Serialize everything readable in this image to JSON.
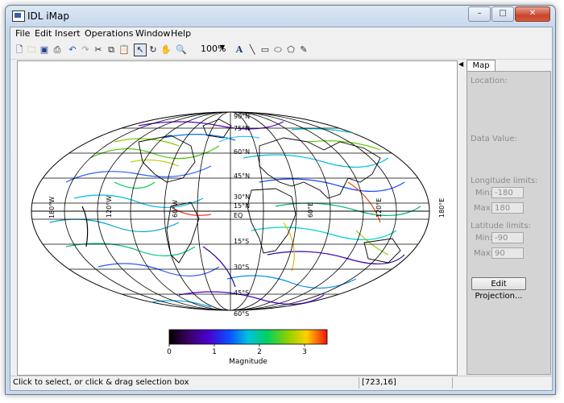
{
  "window": {
    "title": "IDL iMap",
    "minimize": "–",
    "maximize": "□",
    "close": "✕"
  },
  "menu": [
    "File",
    "Edit",
    "Insert",
    "Operations",
    "Window",
    "Help"
  ],
  "toolbar": {
    "icons": [
      "new-file-icon",
      "open-folder-icon",
      "save-icon",
      "print-icon",
      "undo-icon",
      "redo-icon",
      "cut-icon",
      "copy-icon",
      "paste-icon",
      "select-arrow-icon",
      "rotate-icon",
      "pan-hand-icon",
      "zoom-icon"
    ],
    "zoom_value": "100%",
    "draw_icons": [
      "text-icon",
      "line-icon",
      "rectangle-icon",
      "ellipse-icon",
      "polygon-icon",
      "freehand-icon"
    ]
  },
  "map": {
    "labels": {
      "lat_90n": "90°N",
      "lat_75n": "75°N",
      "lat_60n": "60°N",
      "lat_45n": "45°N",
      "lat_30n": "30°N",
      "lat_15n": "15°N",
      "lat_eq": "EQ",
      "lat_15s": "15°S",
      "lat_30s": "30°S",
      "lat_45s": "45°S",
      "lat_60s": "60°S",
      "lon_180w": "180°W",
      "lon_120w": "120°W",
      "lon_60w": "60°W",
      "lon_60e": "60°E",
      "lon_120e": "120°E",
      "lon_180e": "180°E"
    },
    "colorbar": {
      "ticks": [
        "0",
        "1",
        "2",
        "3"
      ],
      "title": "Magnitude",
      "min": 0,
      "max": 3.5
    }
  },
  "panel": {
    "tab": "Map",
    "location_label": "Location:",
    "data_value_label": "Data Value:",
    "longitude_label": "Longitude limits:",
    "latitude_label": "Latitude limits:",
    "min_label": "Min:",
    "max_label": "Max:",
    "lon_min": "-180",
    "lon_max": "180",
    "lat_min": "-90",
    "lat_max": "90",
    "edit_projection": "Edit Projection..."
  },
  "status": {
    "hint": "Click to select, or click & drag selection box",
    "coords": "[723,16]"
  }
}
